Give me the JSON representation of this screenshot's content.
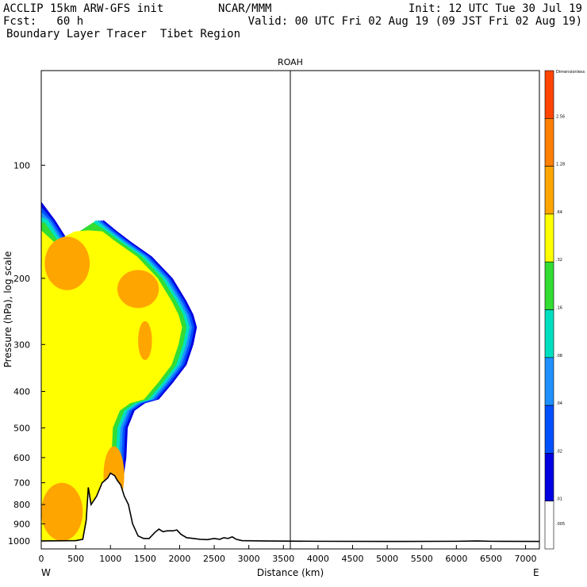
{
  "header": {
    "left_line1": "ACCLIP 15km ARW-GFS init",
    "left_line2": "Fcst:   60 h",
    "left_line3": "Boundary Layer Tracer  Tibet Region",
    "center_line1": "NCAR/MMM",
    "right_line1": "Init: 12 UTC Tue 30 Jul 19",
    "right_line2": "Valid: 00 UTC Fri 02 Aug 19 (09 JST Fri 02 Aug 19)"
  },
  "chart_data": {
    "type": "heatmap",
    "title": "ROAH",
    "xlabel": "Distance (km)",
    "ylabel": "Pressure (hPa), log scale",
    "x_end_labels": {
      "left": "W",
      "right": "E"
    },
    "xlim": [
      0,
      7200
    ],
    "x_ticks": [
      0,
      500,
      1000,
      1500,
      2000,
      2500,
      3000,
      3500,
      4000,
      4500,
      5000,
      5500,
      6000,
      6500,
      7000
    ],
    "ylim": [
      1050,
      56
    ],
    "y_scale": "log",
    "y_ticks": [
      100,
      200,
      300,
      400,
      500,
      600,
      700,
      800,
      900,
      1000
    ],
    "vertical_marker_km": 3600,
    "colorbar": {
      "levels": [
        "Dimensionless",
        "2.56",
        "1.28",
        ".64",
        ".32",
        ".16",
        ".08",
        ".04",
        ".02",
        ".01",
        ".005"
      ],
      "colors": [
        "#ff4500",
        "#ff7f00",
        "#ffa500",
        "#ffff00",
        "#33dd33",
        "#00e0c0",
        "#1e90ff",
        "#0050ff",
        "#0000e0",
        "#ffffff"
      ]
    },
    "plume": {
      "right_edge": [
        [
          0,
          125
        ],
        [
          200,
          140
        ],
        [
          400,
          160
        ],
        [
          700,
          150
        ],
        [
          900,
          140
        ],
        [
          1100,
          150
        ],
        [
          1300,
          160
        ],
        [
          1600,
          175
        ],
        [
          1900,
          200
        ],
        [
          2100,
          230
        ],
        [
          2200,
          250
        ],
        [
          2250,
          270
        ],
        [
          2200,
          300
        ],
        [
          2100,
          340
        ],
        [
          1900,
          380
        ],
        [
          1700,
          420
        ],
        [
          1500,
          430
        ],
        [
          1350,
          450
        ],
        [
          1250,
          500
        ],
        [
          1230,
          600
        ],
        [
          1180,
          700
        ],
        [
          1160,
          800
        ],
        [
          1120,
          900
        ],
        [
          1100,
          1000
        ]
      ],
      "orange_cores": [
        {
          "x": [
            50,
            700
          ],
          "p": [
            155,
            215
          ]
        },
        {
          "x": [
            1100,
            1700
          ],
          "p": [
            190,
            240
          ]
        },
        {
          "x": [
            1400,
            1600
          ],
          "p": [
            260,
            330
          ]
        },
        {
          "x": [
            0,
            600
          ],
          "p": [
            700,
            1000
          ]
        },
        {
          "x": [
            900,
            1200
          ],
          "p": [
            560,
            800
          ]
        }
      ]
    },
    "terrain_km_hpa": [
      [
        0,
        1000
      ],
      [
        500,
        998
      ],
      [
        600,
        990
      ],
      [
        650,
        880
      ],
      [
        680,
        720
      ],
      [
        720,
        800
      ],
      [
        800,
        760
      ],
      [
        880,
        700
      ],
      [
        960,
        680
      ],
      [
        1000,
        660
      ],
      [
        1060,
        670
      ],
      [
        1100,
        690
      ],
      [
        1150,
        710
      ],
      [
        1200,
        760
      ],
      [
        1260,
        800
      ],
      [
        1320,
        900
      ],
      [
        1400,
        970
      ],
      [
        1480,
        985
      ],
      [
        1560,
        985
      ],
      [
        1640,
        950
      ],
      [
        1700,
        930
      ],
      [
        1760,
        945
      ],
      [
        1820,
        940
      ],
      [
        1900,
        940
      ],
      [
        1960,
        935
      ],
      [
        2020,
        960
      ],
      [
        2100,
        980
      ],
      [
        2200,
        985
      ],
      [
        2300,
        990
      ],
      [
        2400,
        992
      ],
      [
        2500,
        985
      ],
      [
        2580,
        990
      ],
      [
        2640,
        980
      ],
      [
        2700,
        985
      ],
      [
        2760,
        975
      ],
      [
        2820,
        990
      ],
      [
        2900,
        998
      ],
      [
        3200,
        1000
      ],
      [
        4000,
        1002
      ],
      [
        5000,
        1003
      ],
      [
        6000,
        1002
      ],
      [
        6300,
        1000
      ],
      [
        6500,
        1002
      ],
      [
        7200,
        1003
      ]
    ]
  }
}
